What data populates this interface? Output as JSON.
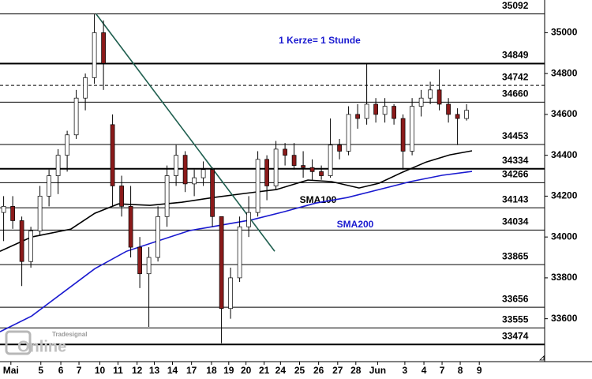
{
  "chart_data": {
    "type": "candlestick",
    "annotation": "1 Kerze= 1 Stunde",
    "watermark": [
      "Tradesignal",
      "Online"
    ],
    "xlim": [
      0,
      30
    ],
    "ylim": [
      33390,
      35160
    ],
    "xticks": [
      {
        "value": 0.6,
        "label": "Mai"
      },
      {
        "value": 2.25,
        "label": "5"
      },
      {
        "value": 3.35,
        "label": "6"
      },
      {
        "value": 4.35,
        "label": "7"
      },
      {
        "value": 5.5,
        "label": "10"
      },
      {
        "value": 6.5,
        "label": "11"
      },
      {
        "value": 7.55,
        "label": "12"
      },
      {
        "value": 8.5,
        "label": "13"
      },
      {
        "value": 9.5,
        "label": "14"
      },
      {
        "value": 10.55,
        "label": "17"
      },
      {
        "value": 11.65,
        "label": "18"
      },
      {
        "value": 12.6,
        "label": "19"
      },
      {
        "value": 13.55,
        "label": "20"
      },
      {
        "value": 14.55,
        "label": "21"
      },
      {
        "value": 15.45,
        "label": "24"
      },
      {
        "value": 16.5,
        "label": "25"
      },
      {
        "value": 17.55,
        "label": "26"
      },
      {
        "value": 18.6,
        "label": "27"
      },
      {
        "value": 19.6,
        "label": "28"
      },
      {
        "value": 20.8,
        "label": "Jun"
      },
      {
        "value": 22.3,
        "label": "3"
      },
      {
        "value": 23.35,
        "label": "4"
      },
      {
        "value": 24.35,
        "label": "7"
      },
      {
        "value": 25.35,
        "label": "8"
      },
      {
        "value": 26.4,
        "label": "9"
      }
    ],
    "yticks": [
      {
        "value": 33600,
        "label": "33600"
      },
      {
        "value": 33800,
        "label": "33800"
      },
      {
        "value": 34000,
        "label": "34000"
      },
      {
        "value": 34200,
        "label": "34200"
      },
      {
        "value": 34400,
        "label": "34400"
      },
      {
        "value": 34600,
        "label": "34600"
      },
      {
        "value": 34800,
        "label": "34800"
      },
      {
        "value": 35000,
        "label": "35000"
      }
    ],
    "levels": [
      {
        "value": 35092,
        "style": "solid"
      },
      {
        "value": 34849,
        "style": "bold"
      },
      {
        "value": 34742,
        "style": "dashed"
      },
      {
        "value": 34660,
        "style": "solid"
      },
      {
        "value": 34453,
        "style": "solid"
      },
      {
        "value": 34334,
        "style": "bold"
      },
      {
        "value": 34266,
        "style": "solid"
      },
      {
        "value": 34143,
        "style": "solid"
      },
      {
        "value": 34034,
        "style": "solid"
      },
      {
        "value": 33865,
        "style": "solid"
      },
      {
        "value": 33656,
        "style": "solid"
      },
      {
        "value": 33555,
        "style": "solid"
      },
      {
        "value": 33474,
        "style": "bold"
      }
    ],
    "candles": {
      "up_color": "#ffffff",
      "down_color": "#8b1a1a",
      "x": [
        0.2,
        0.7,
        1.2,
        1.7,
        2.2,
        2.7,
        3.2,
        3.7,
        4.2,
        4.7,
        5.2,
        5.7,
        6.2,
        6.7,
        7.2,
        7.7,
        8.2,
        8.7,
        9.2,
        9.7,
        10.2,
        10.7,
        11.2,
        11.7,
        12.2,
        12.7,
        13.2,
        13.7,
        14.2,
        14.7,
        15.2,
        15.7,
        16.2,
        16.7,
        17.2,
        17.7,
        18.2,
        18.7,
        19.2,
        19.7,
        20.2,
        20.7,
        21.2,
        21.7,
        22.2,
        22.7,
        23.2,
        23.7,
        24.2,
        24.7,
        25.2,
        25.7
      ],
      "open": [
        34120,
        34150,
        34080,
        33880,
        34030,
        34200,
        34300,
        34400,
        34500,
        34680,
        34780,
        35000,
        34550,
        34250,
        34150,
        33950,
        33820,
        33900,
        34100,
        34300,
        34400,
        34260,
        34290,
        34330,
        34100,
        33650,
        33800,
        34050,
        34120,
        34380,
        34250,
        34430,
        34400,
        34350,
        34340,
        34320,
        34300,
        34450,
        34420,
        34600,
        34580,
        34650,
        34600,
        34640,
        34580,
        34420,
        34640,
        34680,
        34720,
        34650,
        34600,
        34580
      ],
      "high": [
        34200,
        34200,
        34100,
        34050,
        34250,
        34330,
        34430,
        34520,
        34720,
        34800,
        35090,
        35060,
        34600,
        34300,
        34250,
        34000,
        33950,
        34150,
        34350,
        34450,
        34420,
        34330,
        34370,
        34340,
        34100,
        33850,
        34100,
        34200,
        34420,
        34400,
        34470,
        34460,
        34460,
        34420,
        34380,
        34350,
        34580,
        34480,
        34640,
        34650,
        34850,
        34680,
        34680,
        34650,
        34600,
        34680,
        34720,
        34760,
        34820,
        34680,
        34630,
        34650
      ],
      "low": [
        33980,
        34040,
        33760,
        33850,
        34010,
        34150,
        34210,
        34320,
        34480,
        34620,
        34750,
        34720,
        34150,
        34100,
        33900,
        33750,
        33560,
        33880,
        34050,
        34250,
        34220,
        34200,
        34250,
        34050,
        33480,
        33600,
        33780,
        34000,
        34100,
        34180,
        34230,
        34350,
        34330,
        34290,
        34280,
        34280,
        34290,
        34380,
        34400,
        34530,
        34550,
        34560,
        34560,
        34550,
        34330,
        34400,
        34590,
        34650,
        34620,
        34560,
        34450,
        34570
      ],
      "close": [
        34150,
        34080,
        33880,
        34030,
        34200,
        34300,
        34400,
        34500,
        34680,
        34780,
        35000,
        34850,
        34250,
        34150,
        33950,
        33820,
        33900,
        34100,
        34300,
        34400,
        34260,
        34290,
        34330,
        34100,
        33650,
        33800,
        34050,
        34120,
        34380,
        34250,
        34430,
        34400,
        34350,
        34340,
        34320,
        34300,
        34450,
        34420,
        34600,
        34580,
        34650,
        34600,
        34640,
        34580,
        34420,
        34640,
        34680,
        34720,
        34650,
        34600,
        34580,
        34620
      ]
    },
    "series": [
      {
        "name": "SMA100",
        "color": "#000000",
        "x": [
          0,
          1.74,
          3.91,
          5.22,
          6.52,
          8.26,
          10,
          11.74,
          13.48,
          15.22,
          16.96,
          18.26,
          19.78,
          20.87,
          22.17,
          23.48,
          24.78,
          26
        ],
        "values": [
          33930,
          34000,
          34039,
          34116,
          34162,
          34155,
          34170,
          34193,
          34213,
          34232,
          34279,
          34271,
          34240,
          34263,
          34317,
          34367,
          34402,
          34422
        ]
      },
      {
        "name": "SMA200",
        "color": "#1a1ad0",
        "x": [
          0,
          1.74,
          3.48,
          5.22,
          6.96,
          8.7,
          10.43,
          12.17,
          13.91,
          15.65,
          17.39,
          19.13,
          20.87,
          22.61,
          24.35,
          26
        ],
        "values": [
          33536,
          33613,
          33729,
          33845,
          33930,
          33981,
          34031,
          34058,
          34085,
          34124,
          34166,
          34193,
          34232,
          34271,
          34302,
          34321
        ]
      }
    ],
    "trendline": {
      "color": "#1f5f4f",
      "x": [
        5.3,
        15.13
      ],
      "values": [
        35091,
        33930
      ]
    }
  }
}
